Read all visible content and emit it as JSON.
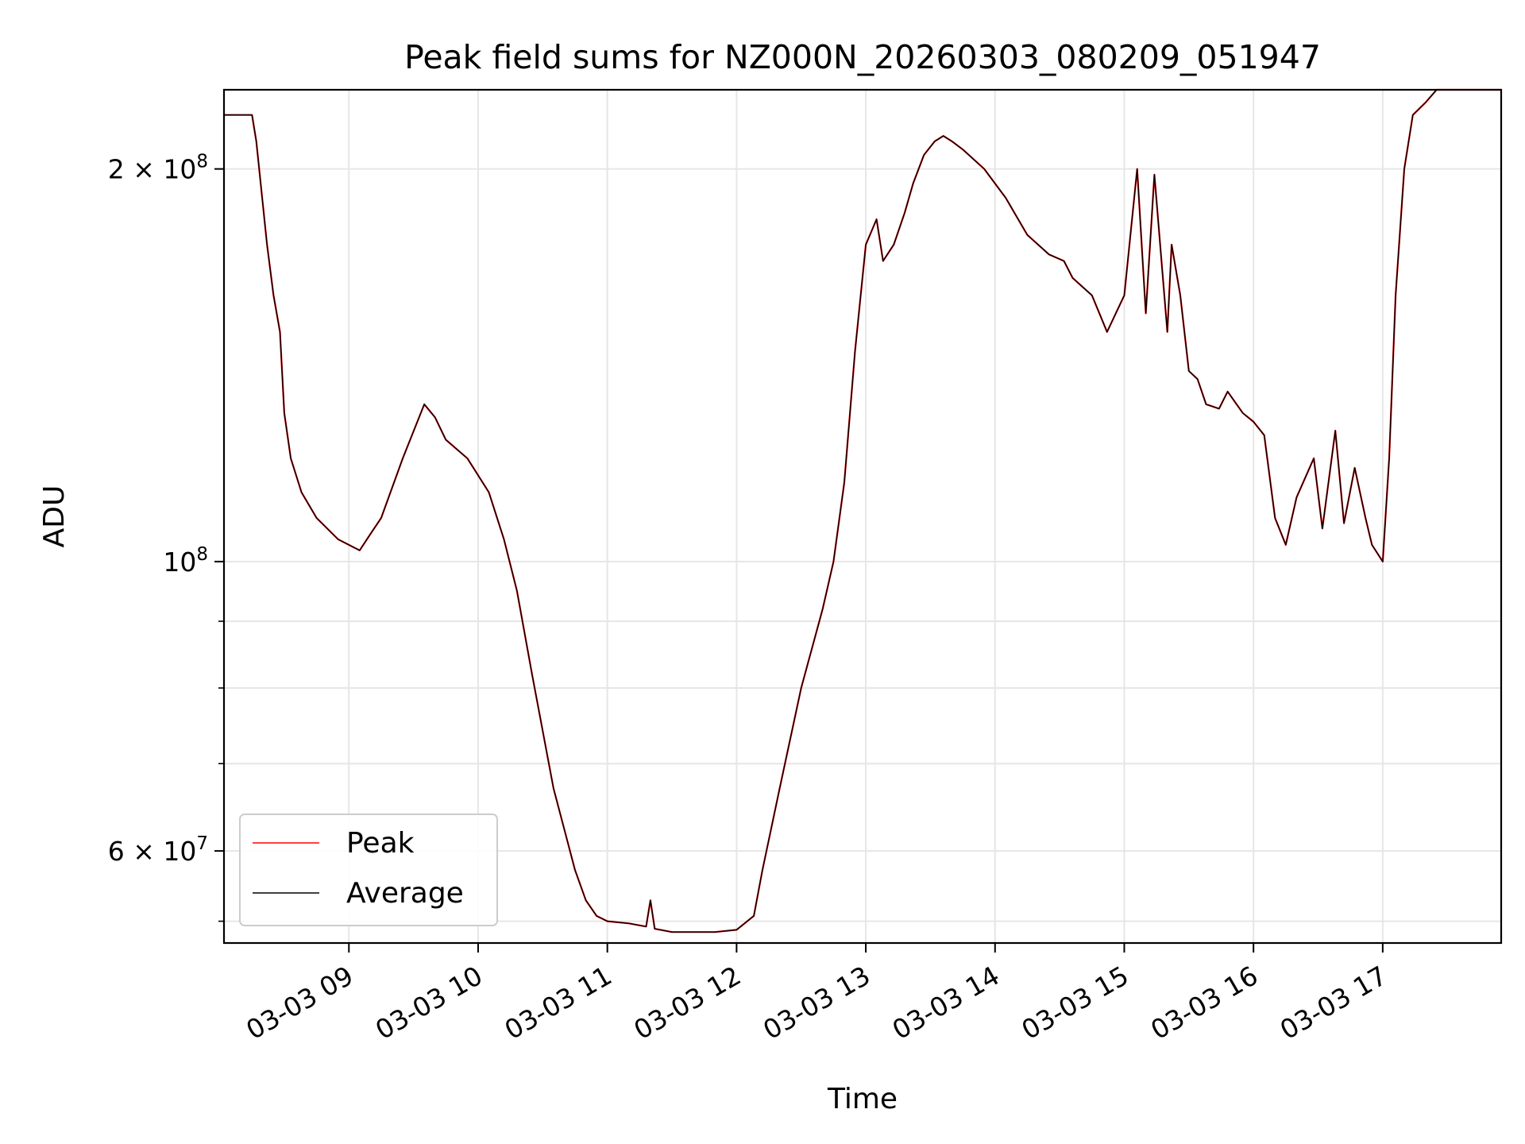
{
  "chart_data": {
    "type": "line",
    "title": "Peak field sums for NZ000N_20260303_080209_051947",
    "xlabel": "Time",
    "ylabel": "ADU",
    "x_axis": {
      "scale": "time",
      "range": [
        "2026-03-03 08:02",
        "2026-03-03 17:55"
      ],
      "tick_values": [
        "2026-03-03 09:00",
        "2026-03-03 10:00",
        "2026-03-03 11:00",
        "2026-03-03 12:00",
        "2026-03-03 13:00",
        "2026-03-03 14:00",
        "2026-03-03 15:00",
        "2026-03-03 16:00",
        "2026-03-03 17:00"
      ],
      "tick_labels": [
        "03-03 09",
        "03-03 10",
        "03-03 11",
        "03-03 12",
        "03-03 13",
        "03-03 14",
        "03-03 15",
        "03-03 16",
        "03-03 17"
      ],
      "tick_rotation_deg": 30
    },
    "y_axis": {
      "scale": "log",
      "range": [
        51000000,
        230000000
      ],
      "major_ticks": [
        {
          "value": 100000000,
          "mantissa": "",
          "exponent": "8"
        },
        {
          "value": 200000000,
          "mantissa": "2",
          "exponent": "8"
        },
        {
          "value": 60000000,
          "mantissa": "6",
          "exponent": "7"
        }
      ],
      "minor_ticks": [
        53000000,
        70000000,
        80000000,
        90000000
      ]
    },
    "grid": true,
    "legend": {
      "placement": "lower-left",
      "entries": [
        {
          "label": "Peak",
          "color": "#ff0000"
        },
        {
          "label": "Average",
          "color": "#000000"
        }
      ]
    },
    "series": [
      {
        "name": "Average",
        "color": "#000000",
        "x": [
          "2026-03-03 08:02",
          "2026-03-03 08:15",
          "2026-03-03 08:17",
          "2026-03-03 08:22",
          "2026-03-03 08:25",
          "2026-03-03 08:28",
          "2026-03-03 08:30",
          "2026-03-03 08:33",
          "2026-03-03 08:38",
          "2026-03-03 08:45",
          "2026-03-03 08:55",
          "2026-03-03 09:05",
          "2026-03-03 09:10",
          "2026-03-03 09:15",
          "2026-03-03 09:25",
          "2026-03-03 09:35",
          "2026-03-03 09:40",
          "2026-03-03 09:45",
          "2026-03-03 09:55",
          "2026-03-03 10:05",
          "2026-03-03 10:12",
          "2026-03-03 10:18",
          "2026-03-03 10:25",
          "2026-03-03 10:35",
          "2026-03-03 10:45",
          "2026-03-03 10:50",
          "2026-03-03 10:55",
          "2026-03-03 11:00",
          "2026-03-03 11:10",
          "2026-03-03 11:18",
          "2026-03-03 11:20",
          "2026-03-03 11:22",
          "2026-03-03 11:30",
          "2026-03-03 11:40",
          "2026-03-03 11:50",
          "2026-03-03 12:00",
          "2026-03-03 12:08",
          "2026-03-03 12:12",
          "2026-03-03 12:20",
          "2026-03-03 12:30",
          "2026-03-03 12:40",
          "2026-03-03 12:45",
          "2026-03-03 12:50",
          "2026-03-03 12:55",
          "2026-03-03 13:00",
          "2026-03-03 13:05",
          "2026-03-03 13:08",
          "2026-03-03 13:13",
          "2026-03-03 13:18",
          "2026-03-03 13:22",
          "2026-03-03 13:27",
          "2026-03-03 13:32",
          "2026-03-03 13:36",
          "2026-03-03 13:40",
          "2026-03-03 13:45",
          "2026-03-03 13:55",
          "2026-03-03 14:05",
          "2026-03-03 14:15",
          "2026-03-03 14:25",
          "2026-03-03 14:32",
          "2026-03-03 14:36",
          "2026-03-03 14:45",
          "2026-03-03 14:52",
          "2026-03-03 15:00",
          "2026-03-03 15:06",
          "2026-03-03 15:10",
          "2026-03-03 15:14",
          "2026-03-03 15:20",
          "2026-03-03 15:22",
          "2026-03-03 15:26",
          "2026-03-03 15:30",
          "2026-03-03 15:34",
          "2026-03-03 15:38",
          "2026-03-03 15:44",
          "2026-03-03 15:48",
          "2026-03-03 15:55",
          "2026-03-03 16:00",
          "2026-03-03 16:05",
          "2026-03-03 16:10",
          "2026-03-03 16:15",
          "2026-03-03 16:20",
          "2026-03-03 16:28",
          "2026-03-03 16:32",
          "2026-03-03 16:38",
          "2026-03-03 16:42",
          "2026-03-03 16:47",
          "2026-03-03 16:52",
          "2026-03-03 16:55",
          "2026-03-03 17:00",
          "2026-03-03 17:03",
          "2026-03-03 17:06",
          "2026-03-03 17:10",
          "2026-03-03 17:14",
          "2026-03-03 17:20",
          "2026-03-03 17:25",
          "2026-03-03 17:30",
          "2026-03-03 17:33",
          "2026-03-03 17:37",
          "2026-03-03 17:40",
          "2026-03-03 17:55"
        ],
        "y": [
          220000000,
          220000000,
          210000000,
          175000000,
          160000000,
          150000000,
          130000000,
          120000000,
          113000000,
          108000000,
          104000000,
          102000000,
          105000000,
          108000000,
          120000000,
          132000000,
          129000000,
          124000000,
          120000000,
          113000000,
          104000000,
          95000000,
          82000000,
          67000000,
          58000000,
          55000000,
          53500000,
          53000000,
          52800000,
          52500000,
          55000000,
          52300000,
          52000000,
          52000000,
          52000000,
          52200000,
          53500000,
          58000000,
          67000000,
          80000000,
          92000000,
          100000000,
          115000000,
          145000000,
          175000000,
          183000000,
          170000000,
          175000000,
          185000000,
          195000000,
          205000000,
          210000000,
          212000000,
          210000000,
          207000000,
          200000000,
          190000000,
          178000000,
          172000000,
          170000000,
          165000000,
          160000000,
          150000000,
          160000000,
          200000000,
          155000000,
          198000000,
          150000000,
          175000000,
          160000000,
          140000000,
          138000000,
          132000000,
          131000000,
          135000000,
          130000000,
          128000000,
          125000000,
          108000000,
          103000000,
          112000000,
          120000000,
          106000000,
          126000000,
          107000000,
          118000000,
          108000000,
          103000000,
          100000000,
          120000000,
          160000000,
          200000000,
          220000000,
          225000000,
          230000000,
          230000000,
          230000000,
          230000000,
          230000000,
          230000000
        ]
      }
    ]
  }
}
